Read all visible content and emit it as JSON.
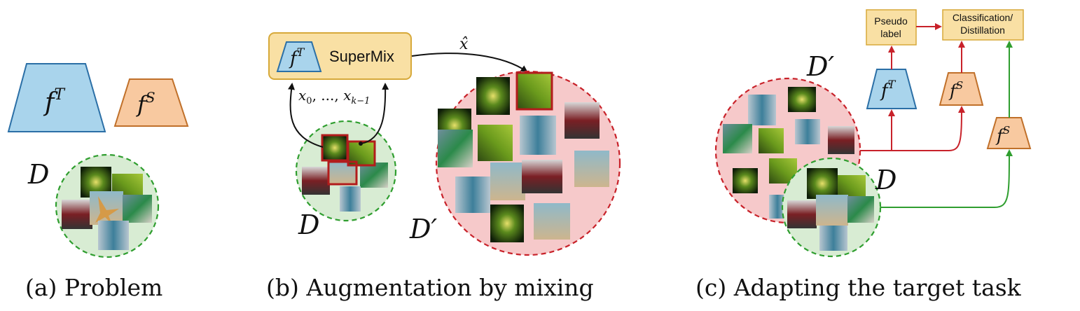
{
  "panels": {
    "a": {
      "caption": "(a) Problem",
      "teacher": {
        "base": "f",
        "sup": "T"
      },
      "student": {
        "base": "f",
        "sup": "S"
      },
      "dataset": "D"
    },
    "b": {
      "caption": "(b) Augmentation by mixing",
      "teacher": {
        "base": "f",
        "sup": "T"
      },
      "supermix_label": "SuperMix",
      "inputs_label": "x0, ..., xk−1",
      "inputs_parts": {
        "x": "x",
        "sub0": "0",
        "sep": ", ..., ",
        "x2": "x",
        "subk": "k−1"
      },
      "output_label": "x̂",
      "dataset": "D",
      "augmented": "D′"
    },
    "c": {
      "caption": "(c) Adapting the target task",
      "pseudo_label": [
        "Pseudo",
        "label"
      ],
      "task_label": [
        "Classification/",
        "Distillation"
      ],
      "teacher": {
        "base": "f",
        "sup": "T"
      },
      "student": {
        "base": "f",
        "sup": "S"
      },
      "student2": {
        "base": "f",
        "sup": "S"
      },
      "dataset": "D",
      "augmented": "D′"
    }
  },
  "colors": {
    "teacher_fill": "#a9d4ec",
    "teacher_stroke": "#2b6fa6",
    "student_fill": "#f8c9a0",
    "student_stroke": "#c0702a",
    "dataset_fill": "#d8ecd3",
    "dataset_stroke": "#2f9e2f",
    "augmented_fill": "#f6c9ca",
    "augmented_stroke": "#c8222a",
    "supermix_fill": "#f9e0a4",
    "supermix_stroke": "#d7a93a",
    "arrow_red": "#c8222a",
    "arrow_green": "#2f9e2f",
    "highlight_red": "#b21c1c"
  },
  "icons": [
    "image-thumbnail-flower",
    "image-thumbnail-leaf",
    "image-thumbnail-bus",
    "image-thumbnail-starfish",
    "image-thumbnail-beetle",
    "image-thumbnail-butterfly"
  ]
}
